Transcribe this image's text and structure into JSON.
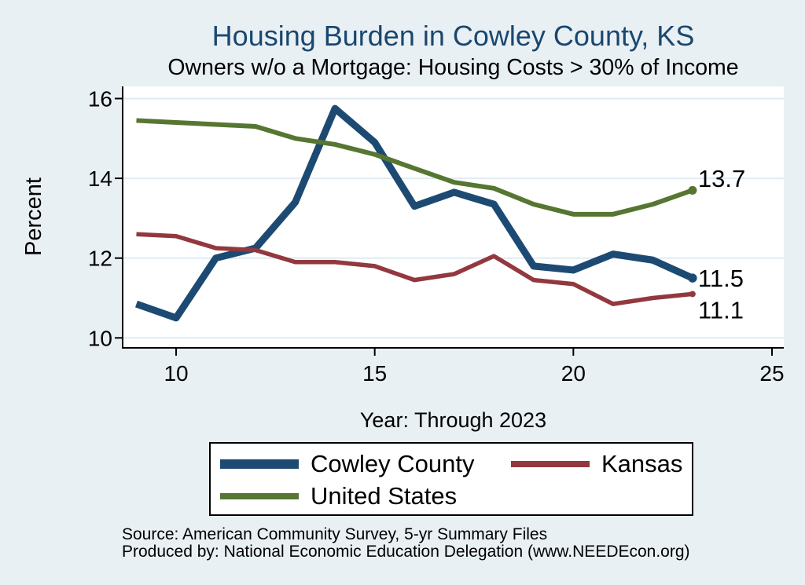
{
  "title": "Housing Burden in Cowley County, KS",
  "subtitle": "Owners w/o a Mortgage: Housing Costs > 30% of Income",
  "chart_data": {
    "type": "line",
    "x": [
      9,
      10,
      11,
      12,
      13,
      14,
      15,
      16,
      17,
      18,
      19,
      20,
      21,
      22,
      23
    ],
    "series": [
      {
        "name": "Cowley County",
        "color": "#1d4a72",
        "line_width": 9,
        "values": [
          10.85,
          10.5,
          12.0,
          12.25,
          13.4,
          15.75,
          14.9,
          13.3,
          13.65,
          13.35,
          11.8,
          11.7,
          12.1,
          11.95,
          11.5
        ],
        "end_label": "11.5"
      },
      {
        "name": "Kansas",
        "color": "#93383e",
        "line_width": 5.5,
        "values": [
          12.6,
          12.55,
          12.25,
          12.2,
          11.9,
          11.9,
          11.8,
          11.45,
          11.6,
          12.05,
          11.45,
          11.35,
          10.85,
          11.0,
          11.1
        ],
        "end_label": "11.1"
      },
      {
        "name": "United States",
        "color": "#567631",
        "line_width": 6,
        "values": [
          15.45,
          15.4,
          15.35,
          15.3,
          15.0,
          14.85,
          14.6,
          14.25,
          13.9,
          13.75,
          13.35,
          13.1,
          13.1,
          13.35,
          13.7
        ],
        "end_label": "13.7"
      }
    ],
    "xlabel": "Year: Through 2023",
    "ylabel": "Percent",
    "xlim": [
      8.654,
      25.297
    ],
    "ylim": [
      9.75,
      16.305
    ],
    "xticks": [
      10,
      15,
      20,
      25
    ],
    "yticks": [
      10,
      12,
      14,
      16
    ],
    "grid": true,
    "legend_position": "bottom"
  },
  "colors": {
    "background": "#e9f0f4",
    "plot_background": "#ffffff",
    "gridline": "#e0ebf3",
    "axis": "#000000",
    "title": "#1a476f"
  },
  "notes": [
    "Source: American Community Survey, 5-yr Summary Files",
    "Produced by: National Economic Education Delegation (www.NEEDEcon.org)"
  ]
}
